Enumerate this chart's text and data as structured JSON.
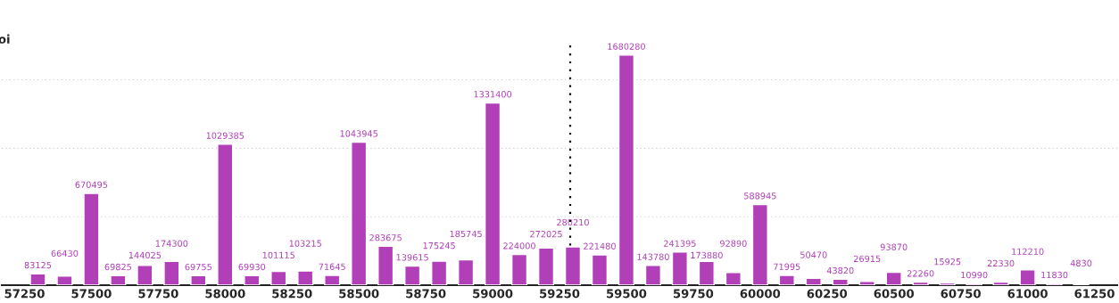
{
  "chart_data": {
    "type": "bar",
    "ylabel": "oi",
    "x": [
      57300,
      57400,
      57500,
      57600,
      57700,
      57800,
      57900,
      58000,
      58100,
      58200,
      58300,
      58400,
      58500,
      58600,
      58700,
      58800,
      58900,
      59000,
      59100,
      59200,
      59300,
      59400,
      59500,
      59600,
      59700,
      59800,
      59900,
      60000,
      60100,
      60200,
      60300,
      60400,
      60500,
      60600,
      60700,
      60800,
      60900,
      61000,
      61100,
      61200
    ],
    "values": [
      83125,
      66430,
      670495,
      69825,
      144025,
      174300,
      69755,
      1029385,
      69930,
      101115,
      103215,
      71645,
      1043945,
      283675,
      139615,
      175245,
      185745,
      1331400,
      224000,
      272025,
      280210,
      221480,
      1680280,
      143780,
      241395,
      173880,
      92890,
      588945,
      71995,
      50470,
      43820,
      26915,
      93870,
      22260,
      15925,
      10990,
      22330,
      112210,
      11830,
      4830
    ],
    "color": "#b03fb8",
    "data_labels": true,
    "xlim": [
      57165,
      61335
    ],
    "xticks": [
      57250,
      57500,
      57750,
      58000,
      58250,
      58500,
      58750,
      59000,
      59250,
      59500,
      59750,
      60000,
      60250,
      60500,
      60750,
      61000,
      61250
    ],
    "ylim": [
      0,
      1790000
    ],
    "yticks": [
      {
        "value": 500000,
        "label": null
      },
      {
        "value": 1000000,
        "label": null
      },
      {
        "value": 1500000,
        "label": null
      }
    ],
    "grid": "y",
    "ref_lines": [
      {
        "axis": "x",
        "value": 59290,
        "color": "#000000",
        "line_style": "dotted"
      }
    ]
  }
}
